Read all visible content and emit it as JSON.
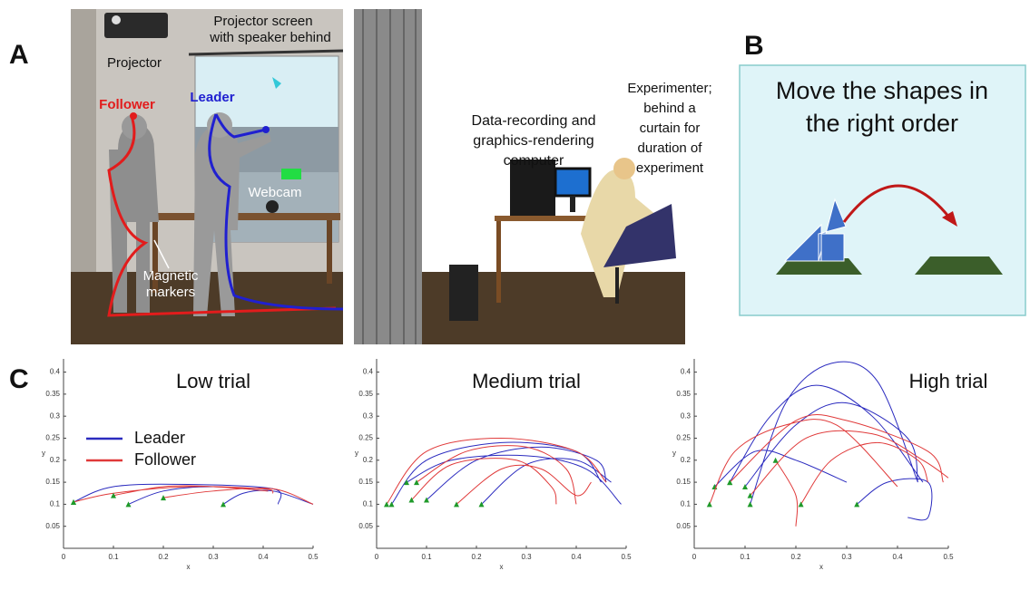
{
  "panel_labels": [
    "A",
    "B",
    "C"
  ],
  "scene": {
    "projector": "Projector",
    "screen": [
      "Projector screen",
      "with speaker behind"
    ],
    "follower": "Follower",
    "leader": "Leader",
    "webcam": "Webcam",
    "markers": [
      "Magnetic",
      "markers"
    ],
    "computer": [
      "Data-recording and",
      "graphics-rendering",
      "computer"
    ],
    "experimenter": [
      "Experimenter;",
      "behind a",
      "curtain for",
      "duration of",
      "experiment"
    ]
  },
  "task": {
    "instruction": [
      "Move the shapes in",
      "the right order"
    ]
  },
  "chart_data": [
    {
      "type": "line",
      "title": "Low trial",
      "xlabel": "x",
      "ylabel": "y",
      "xlim": [
        0,
        0.5
      ],
      "ylim": [
        0,
        0.43
      ],
      "xticks": [
        0,
        0.1,
        0.2,
        0.3,
        0.4,
        0.5
      ],
      "yticks": [
        0.05,
        0.1,
        0.15,
        0.2,
        0.25,
        0.3,
        0.35,
        0.4
      ],
      "legend": "upper left",
      "series": [
        {
          "name": "Leader",
          "color": "#2b2bbf",
          "x": [
            0.02,
            0.1,
            0.25,
            0.42,
            0.43,
            null,
            0.13,
            0.2,
            0.3,
            0.41,
            null,
            0.32,
            0.36,
            0.42,
            0.5
          ],
          "y": [
            0.105,
            0.14,
            0.145,
            0.135,
            0.1,
            null,
            0.1,
            0.13,
            0.14,
            0.13,
            null,
            0.1,
            0.125,
            0.13,
            0.1
          ]
        },
        {
          "name": "Follower",
          "color": "#e03a3a",
          "x": [
            0.02,
            0.1,
            0.25,
            0.4,
            0.42,
            null,
            0.1,
            0.2,
            0.3,
            0.41,
            null,
            0.2,
            0.3,
            0.42,
            0.5
          ],
          "y": [
            0.105,
            0.125,
            0.14,
            0.135,
            0.125,
            null,
            0.12,
            0.14,
            0.14,
            0.13,
            null,
            0.115,
            0.13,
            0.135,
            0.1
          ]
        }
      ]
    },
    {
      "type": "line",
      "title": "Medium trial",
      "xlabel": "x",
      "ylabel": "y",
      "xlim": [
        0,
        0.5
      ],
      "ylim": [
        0,
        0.43
      ],
      "xticks": [
        0,
        0.1,
        0.2,
        0.3,
        0.4,
        0.5
      ],
      "yticks": [
        0.05,
        0.1,
        0.15,
        0.2,
        0.25,
        0.3,
        0.35,
        0.4
      ],
      "series": [
        {
          "color": "#2b2bbf",
          "x": [
            0.03,
            0.1,
            0.25,
            0.4,
            0.45,
            null,
            0.1,
            0.2,
            0.33,
            0.44,
            0.46,
            null,
            0.06,
            0.15,
            0.3,
            0.42,
            0.49,
            null,
            0.21,
            0.3,
            0.4,
            0.47
          ],
          "y": [
            0.1,
            0.2,
            0.24,
            0.22,
            0.15,
            null,
            0.11,
            0.2,
            0.23,
            0.2,
            0.15,
            null,
            0.15,
            0.2,
            0.21,
            0.18,
            0.1,
            null,
            0.1,
            0.19,
            0.2,
            0.15
          ]
        },
        {
          "color": "#e03a3a",
          "x": [
            0.02,
            0.1,
            0.25,
            0.4,
            0.46,
            null,
            0.08,
            0.18,
            0.3,
            0.38,
            0.4,
            null,
            0.07,
            0.15,
            0.28,
            0.35,
            0.36,
            null,
            0.16,
            0.25,
            0.33,
            0.4,
            0.43
          ],
          "y": [
            0.1,
            0.22,
            0.25,
            0.22,
            0.15,
            null,
            0.15,
            0.22,
            0.23,
            0.18,
            0.1,
            null,
            0.11,
            0.19,
            0.2,
            0.14,
            0.1,
            null,
            0.1,
            0.18,
            0.18,
            0.12,
            0.15
          ]
        }
      ]
    },
    {
      "type": "line",
      "title": "High trial",
      "xlabel": "x",
      "ylabel": "y",
      "xlim": [
        0,
        0.5
      ],
      "ylim": [
        0,
        0.43
      ],
      "xticks": [
        0,
        0.1,
        0.2,
        0.3,
        0.4,
        0.5
      ],
      "yticks": [
        0.05,
        0.1,
        0.15,
        0.2,
        0.25,
        0.3,
        0.35,
        0.4
      ],
      "series": [
        {
          "color": "#2b2bbf",
          "x": [
            0.11,
            0.18,
            0.27,
            0.36,
            0.44,
            null,
            0.07,
            0.15,
            0.24,
            0.35,
            0.45,
            null,
            0.1,
            0.2,
            0.3,
            0.42,
            0.44,
            null,
            0.04,
            0.12,
            0.2,
            0.3,
            null,
            0.32,
            0.38,
            0.46,
            0.46,
            0.42
          ],
          "y": [
            0.1,
            0.33,
            0.42,
            0.38,
            0.15,
            null,
            0.15,
            0.3,
            0.37,
            0.3,
            0.15,
            null,
            0.14,
            0.28,
            0.33,
            0.25,
            0.15,
            null,
            0.14,
            0.22,
            0.2,
            0.15,
            null,
            0.1,
            0.15,
            0.15,
            0.07,
            0.07
          ]
        },
        {
          "color": "#e03a3a",
          "x": [
            0.03,
            0.08,
            0.18,
            0.28,
            0.4,
            null,
            0.07,
            0.2,
            0.3,
            0.46,
            0.49,
            null,
            0.11,
            0.22,
            0.35,
            0.45,
            0.5,
            null,
            0.21,
            0.27,
            0.36,
            0.44,
            0.46,
            null,
            0.16,
            0.2,
            0.2
          ],
          "y": [
            0.1,
            0.22,
            0.28,
            0.28,
            0.14,
            null,
            0.15,
            0.29,
            0.29,
            0.22,
            0.15,
            null,
            0.12,
            0.25,
            0.26,
            0.2,
            0.16,
            null,
            0.1,
            0.2,
            0.24,
            0.2,
            0.15,
            null,
            0.2,
            0.12,
            0.05
          ]
        }
      ]
    }
  ]
}
